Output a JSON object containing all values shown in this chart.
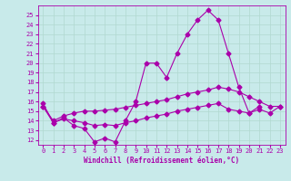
{
  "background_color": "#c8eaea",
  "grid_color": "#b0d8d0",
  "line_color": "#aa00aa",
  "xlabel": "Windchill (Refroidissement éolien,°C)",
  "xlim": [
    -0.5,
    23.5
  ],
  "ylim": [
    11.5,
    26
  ],
  "yticks": [
    12,
    13,
    14,
    15,
    16,
    17,
    18,
    19,
    20,
    21,
    22,
    23,
    24,
    25
  ],
  "xticks": [
    0,
    1,
    2,
    3,
    4,
    5,
    6,
    7,
    8,
    9,
    10,
    11,
    12,
    13,
    14,
    15,
    16,
    17,
    18,
    19,
    20,
    21,
    22,
    23
  ],
  "series": [
    {
      "x": [
        0,
        1,
        2,
        3,
        4,
        5,
        6,
        7,
        8,
        9,
        10,
        11,
        12,
        13,
        14,
        15,
        16,
        17,
        18,
        19,
        20,
        21
      ],
      "y": [
        15.8,
        13.8,
        14.3,
        13.5,
        13.2,
        11.8,
        12.2,
        11.8,
        14.0,
        16.0,
        20.0,
        20.0,
        18.5,
        21.0,
        23.0,
        24.5,
        25.5,
        24.5,
        21.0,
        17.5,
        14.8,
        15.5
      ]
    },
    {
      "x": [
        0,
        1,
        2,
        3,
        4,
        5,
        6,
        7,
        8,
        9,
        10,
        11,
        12,
        13,
        14,
        15,
        16,
        17,
        18,
        19,
        20,
        21,
        22,
        23
      ],
      "y": [
        15.5,
        14.0,
        14.5,
        14.8,
        15.0,
        15.0,
        15.1,
        15.2,
        15.4,
        15.6,
        15.8,
        16.0,
        16.2,
        16.5,
        16.8,
        17.0,
        17.2,
        17.5,
        17.3,
        17.0,
        16.5,
        16.0,
        15.5,
        15.5
      ]
    },
    {
      "x": [
        0,
        1,
        2,
        3,
        4,
        5,
        6,
        7,
        8,
        9,
        10,
        11,
        12,
        13,
        14,
        15,
        16,
        17,
        18,
        19,
        20,
        21,
        22,
        23
      ],
      "y": [
        15.5,
        13.8,
        14.2,
        14.0,
        13.8,
        13.5,
        13.6,
        13.5,
        13.8,
        14.0,
        14.3,
        14.5,
        14.7,
        15.0,
        15.2,
        15.4,
        15.6,
        15.8,
        15.2,
        15.0,
        14.8,
        15.2,
        14.8,
        15.5
      ]
    }
  ],
  "marker": "D",
  "markersize": 2.5,
  "linewidth": 0.8,
  "tick_labelsize": 5,
  "xlabel_fontsize": 5.5
}
